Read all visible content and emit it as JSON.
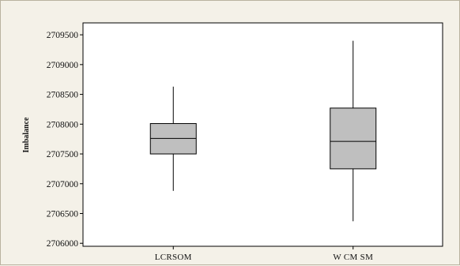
{
  "chart_data": {
    "type": "boxplot",
    "title": "",
    "xlabel": "",
    "ylabel": "Imbalance",
    "ylim": [
      2705950,
      2709700
    ],
    "yticks": [
      2706000,
      2706500,
      2707000,
      2707500,
      2708000,
      2708500,
      2709000,
      2709500
    ],
    "ytick_labels": [
      "2706000",
      "2706500",
      "2707000",
      "2707500",
      "2708000",
      "2708500",
      "2709000",
      "2709500"
    ],
    "grid": false,
    "categories": [
      "LCRSOM",
      "W CM SM"
    ],
    "boxes": [
      {
        "category": "LCRSOM",
        "whisker_low": 2706880,
        "q1": 2707500,
        "median": 2707760,
        "q3": 2708010,
        "whisker_high": 2708630
      },
      {
        "category": "W CM SM",
        "whisker_low": 2706370,
        "q1": 2707250,
        "median": 2707710,
        "q3": 2708270,
        "whisker_high": 2709400
      }
    ],
    "colors": {
      "box_fill": "#bfbfbf",
      "stroke": "#000000",
      "plot_bg": "#ffffff",
      "page_bg": "#f4f1e8"
    }
  }
}
